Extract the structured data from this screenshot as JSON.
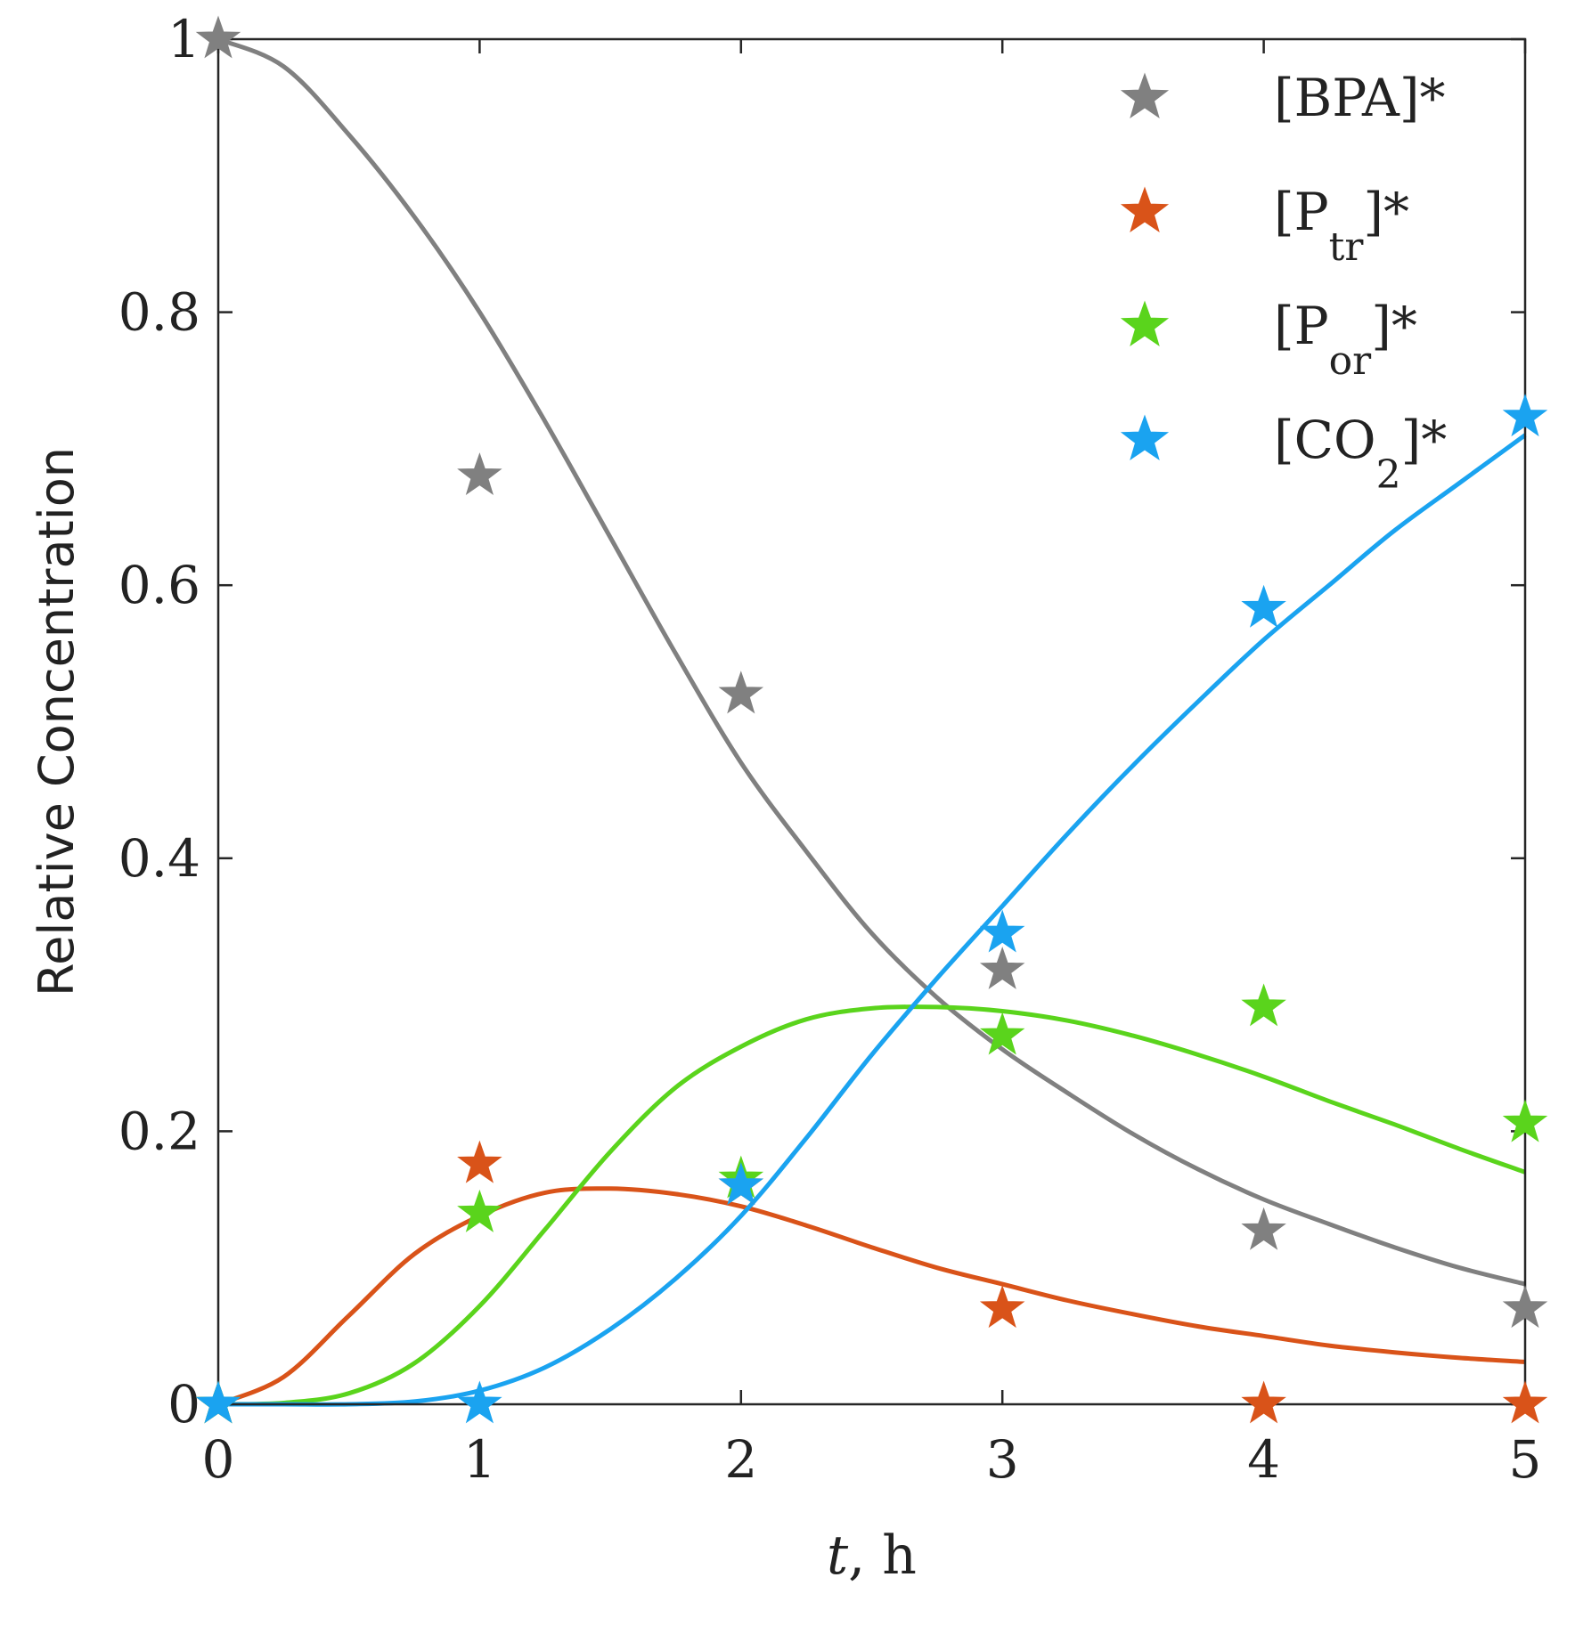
{
  "chart_data": {
    "type": "line",
    "xlabel_italic": "t",
    "xlabel_rest": ", h",
    "ylabel": "Relative Concentration",
    "xlim": [
      0,
      5
    ],
    "ylim": [
      0,
      1
    ],
    "xticks": [
      0,
      1,
      2,
      3,
      4,
      5
    ],
    "xtick_labels": [
      "0",
      "1",
      "2",
      "3",
      "4",
      "5"
    ],
    "yticks": [
      0,
      0.2,
      0.4,
      0.6,
      0.8,
      1
    ],
    "ytick_labels": [
      "0",
      "0.2",
      "0.4",
      "0.6",
      "0.8",
      "1"
    ],
    "grid": false,
    "legend_position": "top-right",
    "series": [
      {
        "name": "[BPA]*",
        "legend_main": "[BPA]*",
        "legend_sub": "",
        "legend_tail": "",
        "color": "#808080",
        "points": {
          "x": [
            0,
            1,
            2,
            3,
            4,
            5
          ],
          "y": [
            1.0,
            0.68,
            0.52,
            0.318,
            0.127,
            0.07
          ]
        },
        "model": {
          "x": [
            0,
            0.25,
            0.5,
            0.75,
            1.0,
            1.25,
            1.5,
            1.75,
            2.0,
            2.25,
            2.5,
            2.75,
            3.0,
            3.25,
            3.5,
            3.75,
            4.0,
            4.25,
            4.5,
            4.75,
            5.0
          ],
          "y": [
            1.0,
            0.98,
            0.93,
            0.87,
            0.8,
            0.72,
            0.635,
            0.55,
            0.47,
            0.405,
            0.345,
            0.298,
            0.26,
            0.228,
            0.198,
            0.172,
            0.15,
            0.132,
            0.115,
            0.1,
            0.088
          ]
        }
      },
      {
        "name": "[Ptr]*",
        "legend_main": "[P",
        "legend_sub": "tr",
        "legend_tail": "]*",
        "color": "#d95319",
        "points": {
          "x": [
            0,
            1,
            2,
            3,
            4,
            5
          ],
          "y": [
            0.0,
            0.176,
            0.16,
            0.07,
            0.0,
            0.0
          ]
        },
        "model": {
          "x": [
            0,
            0.25,
            0.5,
            0.75,
            1.0,
            1.25,
            1.5,
            1.75,
            2.0,
            2.25,
            2.5,
            2.75,
            3.0,
            3.25,
            3.5,
            3.75,
            4.0,
            4.25,
            4.5,
            4.75,
            5.0
          ],
          "y": [
            0.0,
            0.02,
            0.065,
            0.11,
            0.138,
            0.155,
            0.158,
            0.154,
            0.145,
            0.131,
            0.115,
            0.1,
            0.088,
            0.076,
            0.066,
            0.057,
            0.05,
            0.043,
            0.038,
            0.034,
            0.031
          ]
        }
      },
      {
        "name": "[Por]*",
        "legend_main": "[P",
        "legend_sub": "or",
        "legend_tail": "]*",
        "color": "#5ad41c",
        "points": {
          "x": [
            0,
            1,
            2,
            3,
            4,
            5
          ],
          "y": [
            0.0,
            0.14,
            0.165,
            0.27,
            0.291,
            0.206
          ]
        },
        "model": {
          "x": [
            0,
            0.25,
            0.5,
            0.75,
            1.0,
            1.25,
            1.5,
            1.75,
            2.0,
            2.25,
            2.5,
            2.75,
            3.0,
            3.25,
            3.5,
            3.75,
            4.0,
            4.25,
            4.5,
            4.75,
            5.0
          ],
          "y": [
            0.0,
            0.001,
            0.008,
            0.03,
            0.072,
            0.128,
            0.185,
            0.232,
            0.262,
            0.282,
            0.29,
            0.291,
            0.288,
            0.281,
            0.27,
            0.256,
            0.24,
            0.222,
            0.205,
            0.187,
            0.17
          ]
        }
      },
      {
        "name": "[CO2]*",
        "legend_main": "[CO",
        "legend_sub": "2",
        "legend_tail": "]*",
        "color": "#1aa3f0",
        "points": {
          "x": [
            0,
            1,
            2,
            3,
            4,
            5
          ],
          "y": [
            0.0,
            0.0,
            0.16,
            0.345,
            0.583,
            0.723
          ]
        },
        "model": {
          "x": [
            0,
            0.25,
            0.5,
            0.75,
            1.0,
            1.25,
            1.5,
            1.75,
            2.0,
            2.25,
            2.5,
            2.75,
            3.0,
            3.25,
            3.5,
            3.75,
            4.0,
            4.25,
            4.5,
            4.75,
            5.0
          ],
          "y": [
            0.0,
            0.0,
            0.0,
            0.002,
            0.01,
            0.027,
            0.055,
            0.092,
            0.138,
            0.195,
            0.256,
            0.312,
            0.365,
            0.418,
            0.468,
            0.515,
            0.56,
            0.6,
            0.64,
            0.675,
            0.71
          ]
        }
      }
    ]
  }
}
